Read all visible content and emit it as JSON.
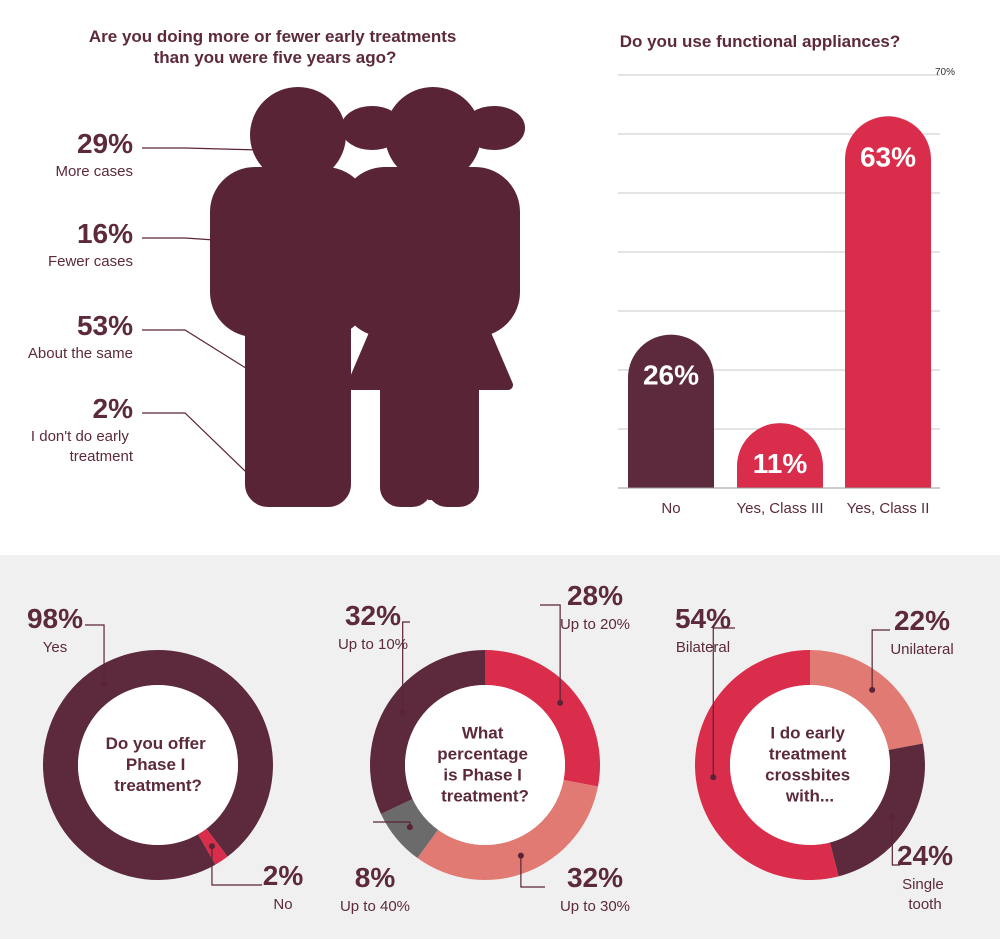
{
  "chart_data": [
    {
      "type": "pictogram",
      "title": "Are you doing more or fewer early treatments than you were five years ago?",
      "categories": [
        "More cases",
        "Fewer cases",
        "About the same",
        "I don't do early treatment"
      ],
      "values": [
        29,
        16,
        53,
        2
      ],
      "value_labels": [
        "29%",
        "16%",
        "53%",
        "2%"
      ],
      "colors": [
        "#d92d4b",
        "#e07a72",
        "#f2b8ae",
        "#f9dcd6"
      ]
    },
    {
      "type": "bar",
      "title": "Do you use functional appliances?",
      "categories": [
        "No",
        "Yes, Class III",
        "Yes, Class II"
      ],
      "values": [
        26,
        11,
        63
      ],
      "value_labels": [
        "26%",
        "11%",
        "63%"
      ],
      "colors": [
        "#5c2a3c",
        "#d92d4b",
        "#d92d4b"
      ],
      "ylim": [
        0,
        70
      ],
      "yticks": [
        {
          "value": 0,
          "label": null
        },
        {
          "value": 10,
          "label": null
        },
        {
          "value": 20,
          "label": null
        },
        {
          "value": 30,
          "label": null
        },
        {
          "value": 40,
          "label": null
        },
        {
          "value": 50,
          "label": null
        },
        {
          "value": 60,
          "label": null
        },
        {
          "value": 70,
          "label": "70%"
        }
      ],
      "grid": true
    },
    {
      "type": "donut",
      "title": "Do you offer Phase I treatment?",
      "categories": [
        "Yes",
        "No"
      ],
      "values": [
        98,
        2
      ],
      "value_labels": [
        "98%",
        "2%"
      ],
      "colors": [
        "#5c2a3c",
        "#d92d4b"
      ]
    },
    {
      "type": "donut",
      "title": "What percentage is Phase I treatment?",
      "categories": [
        "Up to 20%",
        "Up to 30%",
        "Up to 40%",
        "Up to 10%"
      ],
      "values": [
        28,
        32,
        8,
        32
      ],
      "value_labels": [
        "28%",
        "32%",
        "8%",
        "32%"
      ],
      "colors": [
        "#d92d4b",
        "#e07a72",
        "#6b6b6b",
        "#5c2a3c"
      ]
    },
    {
      "type": "donut",
      "title": "I do early treatment crossbites with...",
      "categories": [
        "Unilateral",
        "Single tooth",
        "Bilateral"
      ],
      "values": [
        22,
        24,
        54
      ],
      "value_labels": [
        "22%",
        "24%",
        "54%"
      ],
      "colors": [
        "#e07a72",
        "#5c2a3c",
        "#d92d4b"
      ]
    }
  ]
}
